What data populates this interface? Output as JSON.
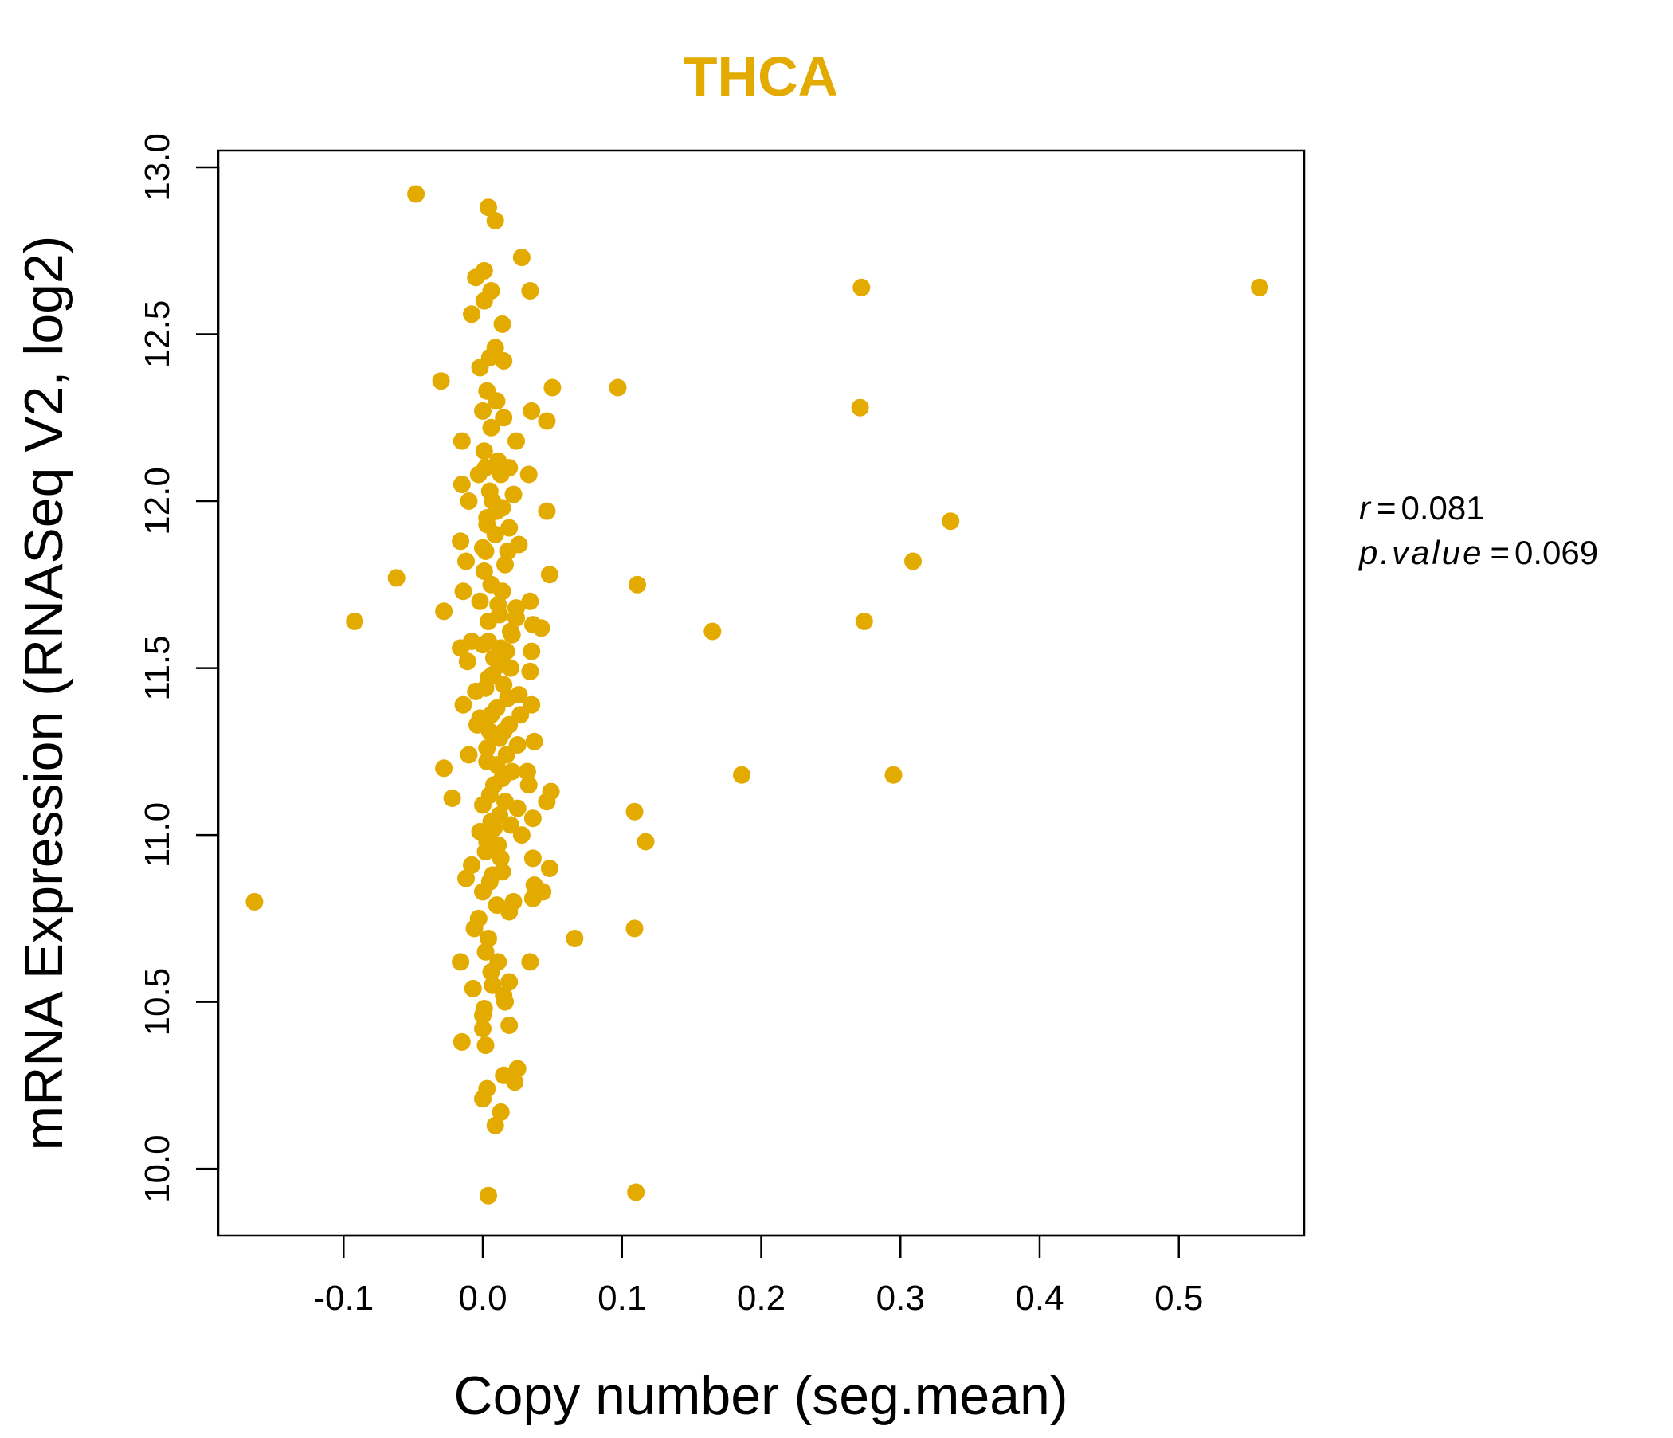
{
  "chart_data": {
    "type": "scatter",
    "title": "THCA",
    "xlabel": "Copy number (seg.mean)",
    "ylabel": "mRNA Expression (RNASeq V2, log2)",
    "xlim": [
      -0.19,
      0.59
    ],
    "ylim": [
      9.8,
      13.05
    ],
    "xticks": [
      -0.1,
      0.0,
      0.1,
      0.2,
      0.3,
      0.4,
      0.5
    ],
    "xtick_labels": [
      "-0.1",
      "0.0",
      "0.1",
      "0.2",
      "0.3",
      "0.4",
      "0.5"
    ],
    "yticks": [
      10.0,
      10.5,
      11.0,
      11.5,
      12.0,
      12.5,
      13.0
    ],
    "ytick_labels": [
      "10.0",
      "10.5",
      "11.0",
      "11.5",
      "12.0",
      "12.5",
      "13.0"
    ],
    "color": "#E3AA00",
    "annotations": {
      "r_label": "r",
      "r_value": "0.081",
      "p_label": "p.value",
      "p_value": "0.069",
      "equals": "="
    },
    "points": [
      [
        -0.048,
        12.92
      ],
      [
        0.004,
        12.88
      ],
      [
        0.009,
        12.84
      ],
      [
        0.028,
        12.73
      ],
      [
        0.272,
        12.64
      ],
      [
        0.558,
        12.64
      ],
      [
        -0.005,
        12.67
      ],
      [
        0.001,
        12.69
      ],
      [
        0.006,
        12.63
      ],
      [
        0.034,
        12.63
      ],
      [
        -0.008,
        12.56
      ],
      [
        0.001,
        12.6
      ],
      [
        0.014,
        12.53
      ],
      [
        0.009,
        12.46
      ],
      [
        0.005,
        12.43
      ],
      [
        0.015,
        12.42
      ],
      [
        -0.002,
        12.4
      ],
      [
        -0.03,
        12.36
      ],
      [
        0.05,
        12.34
      ],
      [
        0.097,
        12.34
      ],
      [
        0.003,
        12.33
      ],
      [
        0.271,
        12.28
      ],
      [
        0.01,
        12.3
      ],
      [
        0.0,
        12.27
      ],
      [
        0.035,
        12.27
      ],
      [
        0.046,
        12.24
      ],
      [
        0.015,
        12.25
      ],
      [
        0.006,
        12.22
      ],
      [
        -0.015,
        12.18
      ],
      [
        0.024,
        12.18
      ],
      [
        0.001,
        12.15
      ],
      [
        0.011,
        12.12
      ],
      [
        0.019,
        12.1
      ],
      [
        0.033,
        12.08
      ],
      [
        -0.003,
        12.08
      ],
      [
        -0.015,
        12.05
      ],
      [
        0.005,
        12.03
      ],
      [
        0.022,
        12.02
      ],
      [
        -0.01,
        12.0
      ],
      [
        0.014,
        11.98
      ],
      [
        0.046,
        11.97
      ],
      [
        0.336,
        11.94
      ],
      [
        0.003,
        11.95
      ],
      [
        0.019,
        11.92
      ],
      [
        0.009,
        11.9
      ],
      [
        -0.016,
        11.88
      ],
      [
        0.026,
        11.87
      ],
      [
        0.002,
        11.85
      ],
      [
        0.018,
        11.85
      ],
      [
        0.309,
        11.82
      ],
      [
        -0.012,
        11.82
      ],
      [
        0.048,
        11.78
      ],
      [
        -0.062,
        11.77
      ],
      [
        0.111,
        11.75
      ],
      [
        0.006,
        11.75
      ],
      [
        0.014,
        11.73
      ],
      [
        -0.014,
        11.73
      ],
      [
        0.034,
        11.7
      ],
      [
        -0.002,
        11.7
      ],
      [
        0.024,
        11.68
      ],
      [
        -0.028,
        11.67
      ],
      [
        0.012,
        11.66
      ],
      [
        -0.092,
        11.64
      ],
      [
        0.274,
        11.64
      ],
      [
        0.004,
        11.64
      ],
      [
        0.036,
        11.63
      ],
      [
        0.042,
        11.62
      ],
      [
        0.165,
        11.61
      ],
      [
        0.021,
        11.6
      ],
      [
        -0.008,
        11.58
      ],
      [
        0.0,
        11.57
      ],
      [
        -0.016,
        11.56
      ],
      [
        0.035,
        11.55
      ],
      [
        0.017,
        11.55
      ],
      [
        0.008,
        11.53
      ],
      [
        -0.011,
        11.52
      ],
      [
        0.02,
        11.5
      ],
      [
        0.034,
        11.49
      ],
      [
        0.004,
        11.47
      ],
      [
        0.015,
        11.45
      ],
      [
        -0.005,
        11.43
      ],
      [
        0.026,
        11.42
      ],
      [
        -0.014,
        11.39
      ],
      [
        0.035,
        11.39
      ],
      [
        0.01,
        11.38
      ],
      [
        0.027,
        11.36
      ],
      [
        -0.002,
        11.35
      ],
      [
        0.019,
        11.33
      ],
      [
        0.005,
        11.31
      ],
      [
        0.012,
        11.29
      ],
      [
        0.037,
        11.28
      ],
      [
        0.025,
        11.27
      ],
      [
        -0.01,
        11.24
      ],
      [
        0.017,
        11.24
      ],
      [
        0.003,
        11.22
      ],
      [
        -0.028,
        11.2
      ],
      [
        0.032,
        11.19
      ],
      [
        0.186,
        11.18
      ],
      [
        0.295,
        11.18
      ],
      [
        0.014,
        11.17
      ],
      [
        0.008,
        11.15
      ],
      [
        0.033,
        11.15
      ],
      [
        0.049,
        11.13
      ],
      [
        -0.022,
        11.11
      ],
      [
        0.046,
        11.1
      ],
      [
        0.0,
        11.09
      ],
      [
        0.025,
        11.08
      ],
      [
        0.109,
        11.07
      ],
      [
        0.012,
        11.06
      ],
      [
        0.036,
        11.05
      ],
      [
        0.006,
        11.04
      ],
      [
        0.02,
        11.03
      ],
      [
        -0.002,
        11.01
      ],
      [
        0.028,
        11.0
      ],
      [
        0.117,
        10.98
      ],
      [
        0.011,
        10.97
      ],
      [
        0.002,
        10.95
      ],
      [
        0.036,
        10.93
      ],
      [
        -0.008,
        10.91
      ],
      [
        0.048,
        10.9
      ],
      [
        0.014,
        10.89
      ],
      [
        -0.012,
        10.87
      ],
      [
        0.005,
        10.86
      ],
      [
        0.037,
        10.85
      ],
      [
        0.043,
        10.83
      ],
      [
        0.0,
        10.83
      ],
      [
        0.036,
        10.81
      ],
      [
        -0.164,
        10.8
      ],
      [
        0.01,
        10.79
      ],
      [
        0.019,
        10.77
      ],
      [
        -0.003,
        10.75
      ],
      [
        0.109,
        10.72
      ],
      [
        -0.006,
        10.72
      ],
      [
        0.004,
        10.69
      ],
      [
        0.066,
        10.69
      ],
      [
        0.002,
        10.65
      ],
      [
        0.011,
        10.62
      ],
      [
        -0.016,
        10.62
      ],
      [
        0.034,
        10.62
      ],
      [
        0.006,
        10.59
      ],
      [
        0.019,
        10.56
      ],
      [
        0.007,
        10.55
      ],
      [
        -0.007,
        10.54
      ],
      [
        0.015,
        10.52
      ],
      [
        0.016,
        10.5
      ],
      [
        0.001,
        10.48
      ],
      [
        0.0,
        10.46
      ],
      [
        0.019,
        10.43
      ],
      [
        0.0,
        10.42
      ],
      [
        -0.015,
        10.38
      ],
      [
        0.002,
        10.37
      ],
      [
        0.025,
        10.3
      ],
      [
        0.015,
        10.28
      ],
      [
        0.023,
        10.26
      ],
      [
        0.003,
        10.24
      ],
      [
        0.0,
        10.21
      ],
      [
        0.013,
        10.17
      ],
      [
        0.009,
        10.13
      ],
      [
        0.11,
        9.93
      ],
      [
        0.004,
        9.92
      ],
      [
        0.002,
        12.1
      ],
      [
        0.013,
        12.08
      ],
      [
        0.007,
        12.0
      ],
      [
        0.003,
        11.93
      ],
      [
        0.016,
        11.81
      ],
      [
        0.001,
        11.79
      ],
      [
        0.011,
        11.69
      ],
      [
        0.02,
        11.61
      ],
      [
        0.004,
        11.58
      ],
      [
        0.013,
        11.56
      ],
      [
        0.007,
        11.48
      ],
      [
        0.002,
        11.44
      ],
      [
        0.018,
        11.41
      ],
      [
        0.006,
        11.36
      ],
      [
        0.015,
        11.31
      ],
      [
        0.003,
        11.26
      ],
      [
        0.01,
        11.21
      ],
      [
        0.021,
        11.19
      ],
      [
        0.005,
        11.12
      ],
      [
        0.016,
        11.1
      ],
      [
        0.008,
        11.02
      ],
      [
        0.003,
        10.98
      ],
      [
        0.013,
        10.93
      ],
      [
        0.007,
        10.88
      ],
      [
        0.022,
        10.8
      ],
      [
        0.01,
        11.97
      ],
      [
        0.0,
        11.86
      ],
      [
        0.024,
        11.65
      ],
      [
        0.012,
        11.51
      ],
      [
        -0.004,
        11.33
      ]
    ]
  }
}
